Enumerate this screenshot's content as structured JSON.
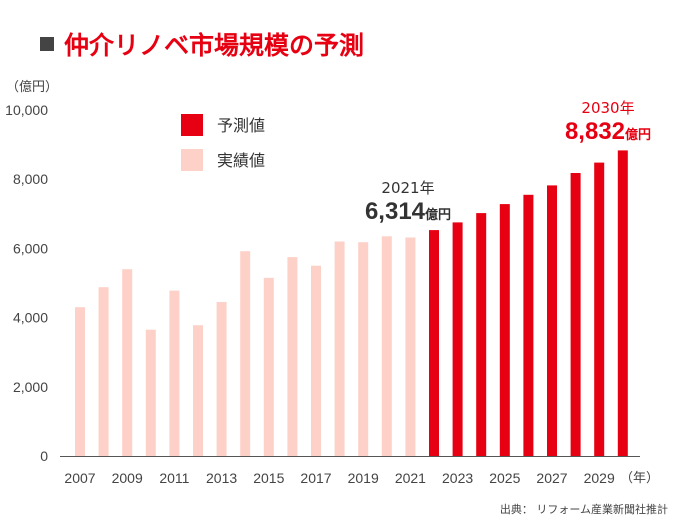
{
  "title": "仲介リノベ市場規模の予測",
  "colors": {
    "forecast": "#e60012",
    "actual": "#fdd1c7",
    "title": "#e60012",
    "axis": "#555555"
  },
  "chart_data": {
    "type": "bar",
    "y_unit": "（億円）",
    "x_unit": "（年）",
    "ylim": [
      0,
      10000
    ],
    "y_ticks": [
      "0",
      "2,000",
      "4,000",
      "6,000",
      "8,000",
      "10,000"
    ],
    "grid": false,
    "legend_position": "top-left",
    "categories": [
      "2007",
      "2008",
      "2009",
      "2010",
      "2011",
      "2012",
      "2013",
      "2014",
      "2015",
      "2016",
      "2017",
      "2018",
      "2019",
      "2020",
      "2021",
      "2022",
      "2023",
      "2024",
      "2025",
      "2026",
      "2027",
      "2028",
      "2029",
      "2030"
    ],
    "x_tick_labels": [
      "2007",
      "2009",
      "2011",
      "2013",
      "2015",
      "2017",
      "2019",
      "2021",
      "2023",
      "2025",
      "2027",
      "2029"
    ],
    "series": [
      {
        "name": "実績値",
        "key": "actual",
        "values": [
          4300,
          4880,
          5400,
          3650,
          4780,
          3780,
          4450,
          5920,
          5150,
          5750,
          5500,
          6200,
          6180,
          6350,
          6314,
          null,
          null,
          null,
          null,
          null,
          null,
          null,
          null,
          null
        ]
      },
      {
        "name": "予測値",
        "key": "forecast",
        "values": [
          null,
          null,
          null,
          null,
          null,
          null,
          null,
          null,
          null,
          null,
          null,
          null,
          null,
          null,
          null,
          6530,
          6750,
          7020,
          7280,
          7550,
          7820,
          8180,
          8480,
          8832
        ]
      }
    ],
    "annotations": [
      {
        "year": "2021",
        "label": "2021年",
        "value_text": "6,314",
        "unit": "億円"
      },
      {
        "year": "2030",
        "label": "2030年",
        "value_text": "8,832",
        "unit": "億円"
      }
    ],
    "source": "出典： リフォーム産業新聞社推計"
  }
}
